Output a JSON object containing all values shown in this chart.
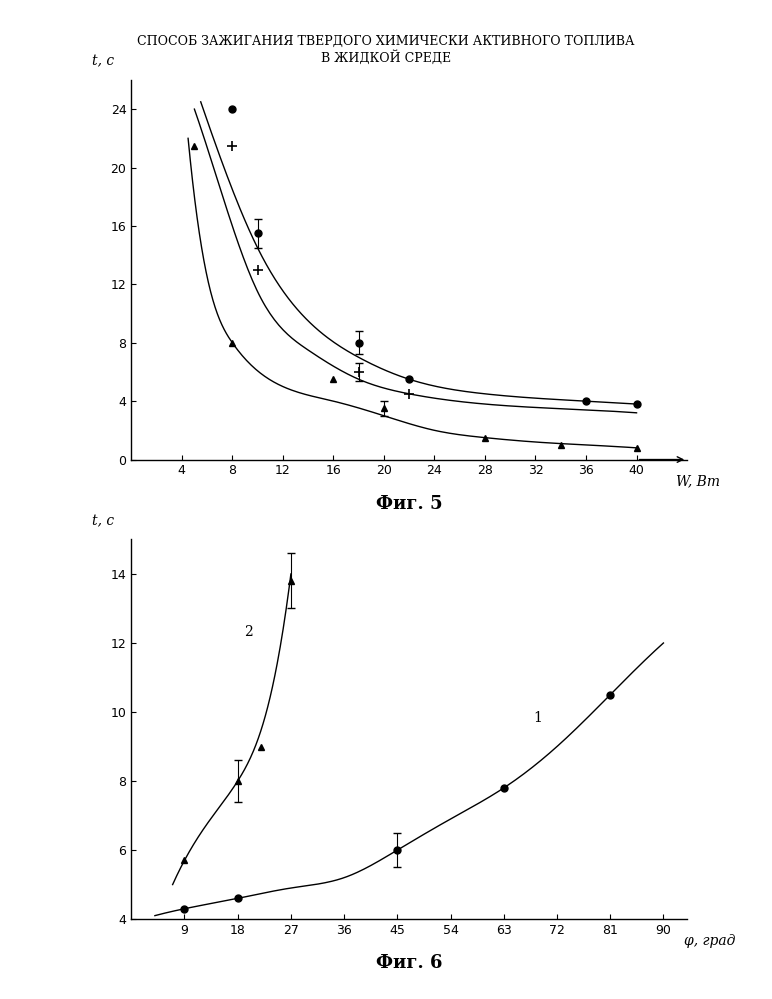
{
  "title_line1": "СПОСОБ ЗАЖИГАНИЯ ТВЕРДОГО ХИМИЧЕСКИ АКТИВНОГО ТОПЛИВА",
  "title_line2": "В ЖИДКОЙ СРЕДЕ",
  "fig5_label": "Фиг. 5",
  "fig6_label": "Фиг. 6",
  "fig5": {
    "ylabel": "t, c",
    "xlabel": "W, Вт",
    "xlim": [
      0,
      44
    ],
    "ylim": [
      0,
      26
    ],
    "xticks": [
      4,
      8,
      12,
      16,
      20,
      24,
      28,
      32,
      36,
      40
    ],
    "yticks": [
      0,
      4,
      8,
      12,
      16,
      20,
      24
    ],
    "series": [
      {
        "name": "top",
        "marker": "o",
        "x": [
          8,
          10,
          18,
          22,
          36,
          40
        ],
        "y": [
          24,
          15.5,
          8.0,
          5.5,
          4.0,
          3.8
        ],
        "yerr": [
          0,
          1.0,
          0.8,
          0,
          0,
          0
        ],
        "curve_x": [
          5.5,
          8,
          10,
          14,
          18,
          22,
          28,
          36,
          40
        ],
        "curve_y": [
          24.5,
          18.5,
          14.5,
          9.5,
          7.0,
          5.5,
          4.5,
          4.0,
          3.8
        ]
      },
      {
        "name": "mid",
        "marker": "+",
        "x": [
          8,
          10,
          18,
          22
        ],
        "y": [
          21.5,
          13.0,
          6.0,
          4.5
        ],
        "yerr": [
          0,
          0,
          0.6,
          0
        ],
        "curve_x": [
          5.0,
          8,
          10,
          14,
          18,
          22,
          28,
          36,
          40
        ],
        "curve_y": [
          24.0,
          16.0,
          11.5,
          7.5,
          5.5,
          4.5,
          3.8,
          3.4,
          3.2
        ]
      },
      {
        "name": "bottom",
        "marker": "^",
        "x": [
          5,
          8,
          16,
          20,
          28,
          34,
          40
        ],
        "y": [
          21.5,
          8.0,
          5.5,
          3.5,
          1.5,
          1.0,
          0.8
        ],
        "yerr": [
          0,
          0,
          0,
          0.5,
          0,
          0,
          0
        ],
        "curve_x": [
          4.5,
          5,
          8,
          12,
          16,
          20,
          24,
          28,
          32,
          36,
          40
        ],
        "curve_y": [
          22.0,
          18.0,
          8.0,
          5.0,
          4.0,
          3.0,
          2.0,
          1.5,
          1.2,
          1.0,
          0.8
        ]
      }
    ]
  },
  "fig6": {
    "ylabel": "t, c",
    "xlabel": "φ, град",
    "xlim": [
      0,
      94
    ],
    "ylim": [
      4,
      15
    ],
    "xticks": [
      9,
      18,
      27,
      36,
      45,
      54,
      63,
      72,
      81,
      90
    ],
    "yticks": [
      4,
      6,
      8,
      10,
      12,
      14
    ],
    "series1": {
      "name": "1",
      "marker": "o",
      "x": [
        9,
        18,
        45,
        63,
        81
      ],
      "y": [
        4.3,
        4.6,
        6.0,
        7.8,
        10.5
      ],
      "yerr": [
        0,
        0,
        0.5,
        0,
        0
      ],
      "curve_x": [
        4,
        9,
        18,
        27,
        36,
        45,
        54,
        63,
        72,
        81,
        90
      ],
      "curve_y": [
        4.1,
        4.3,
        4.6,
        4.9,
        5.2,
        6.0,
        6.9,
        7.8,
        9.0,
        10.5,
        12.0
      ]
    },
    "series2": {
      "name": "2",
      "marker": "^",
      "x": [
        9,
        18,
        22,
        27
      ],
      "y": [
        5.7,
        8.0,
        9.0,
        13.8
      ],
      "yerr": [
        0,
        0.6,
        0,
        0.8
      ],
      "curve_x": [
        7,
        9,
        13,
        18,
        22,
        27
      ],
      "curve_y": [
        5.0,
        5.7,
        6.8,
        8.0,
        9.5,
        14.0
      ]
    }
  },
  "bg_color": "#ffffff",
  "line_color": "#000000",
  "marker_color": "#000000",
  "marker_size": 5,
  "line_width": 1.0
}
